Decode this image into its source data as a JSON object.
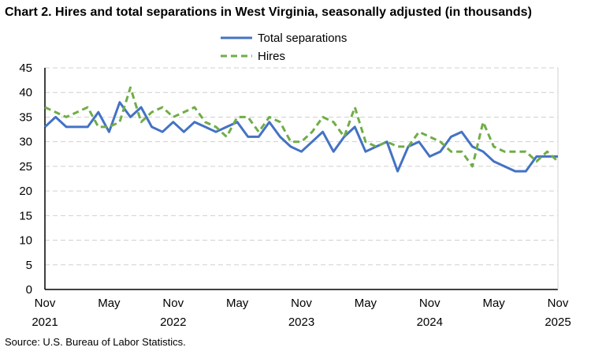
{
  "chart_data": {
    "type": "line",
    "title": "Chart 2. Hires and total separations in West Virginia, seasonally adjusted (in thousands)",
    "source": "Source: U.S. Bureau of Labor Statistics.",
    "x_start": "2021-11",
    "x_end": "2025-11",
    "x_ticks": [
      {
        "month": "Nov",
        "year": "2021",
        "index": 0
      },
      {
        "month": "May",
        "year": "",
        "index": 6
      },
      {
        "month": "Nov",
        "year": "2022",
        "index": 12
      },
      {
        "month": "May",
        "year": "",
        "index": 18
      },
      {
        "month": "Nov",
        "year": "2023",
        "index": 24
      },
      {
        "month": "May",
        "year": "",
        "index": 30
      },
      {
        "month": "Nov",
        "year": "2024",
        "index": 36
      },
      {
        "month": "May",
        "year": "",
        "index": 42
      },
      {
        "month": "Nov",
        "year": "2025",
        "index": 48
      }
    ],
    "ylim": [
      0,
      45
    ],
    "y_ticks": [
      0,
      5,
      10,
      15,
      20,
      25,
      30,
      35,
      40,
      45
    ],
    "grid": "horizontal dashed",
    "legend": "top-center",
    "series": [
      {
        "name": "Total separations",
        "color": "#4472C4",
        "style": "solid",
        "values": [
          33,
          35,
          33,
          33,
          33,
          36,
          32,
          38,
          35,
          37,
          33,
          32,
          34,
          32,
          34,
          33,
          32,
          33,
          34,
          31,
          31,
          34,
          31,
          29,
          28,
          30,
          32,
          28,
          31,
          33,
          28,
          29,
          30,
          24,
          29,
          30,
          27,
          28,
          31,
          32,
          29,
          28,
          26,
          25,
          24,
          24,
          27,
          27,
          27
        ]
      },
      {
        "name": "Hires",
        "color": "#70AD47",
        "style": "dashed",
        "values": [
          37,
          36,
          35,
          36,
          37,
          33,
          33,
          34,
          41,
          34,
          36,
          37,
          35,
          36,
          37,
          34,
          33,
          31,
          35,
          35,
          32,
          35,
          34,
          30,
          30,
          32,
          35,
          34,
          31,
          37,
          30,
          29,
          30,
          29,
          29,
          32,
          31,
          30,
          28,
          28,
          25,
          34,
          29,
          28,
          28,
          28,
          26,
          28,
          26
        ]
      }
    ]
  }
}
